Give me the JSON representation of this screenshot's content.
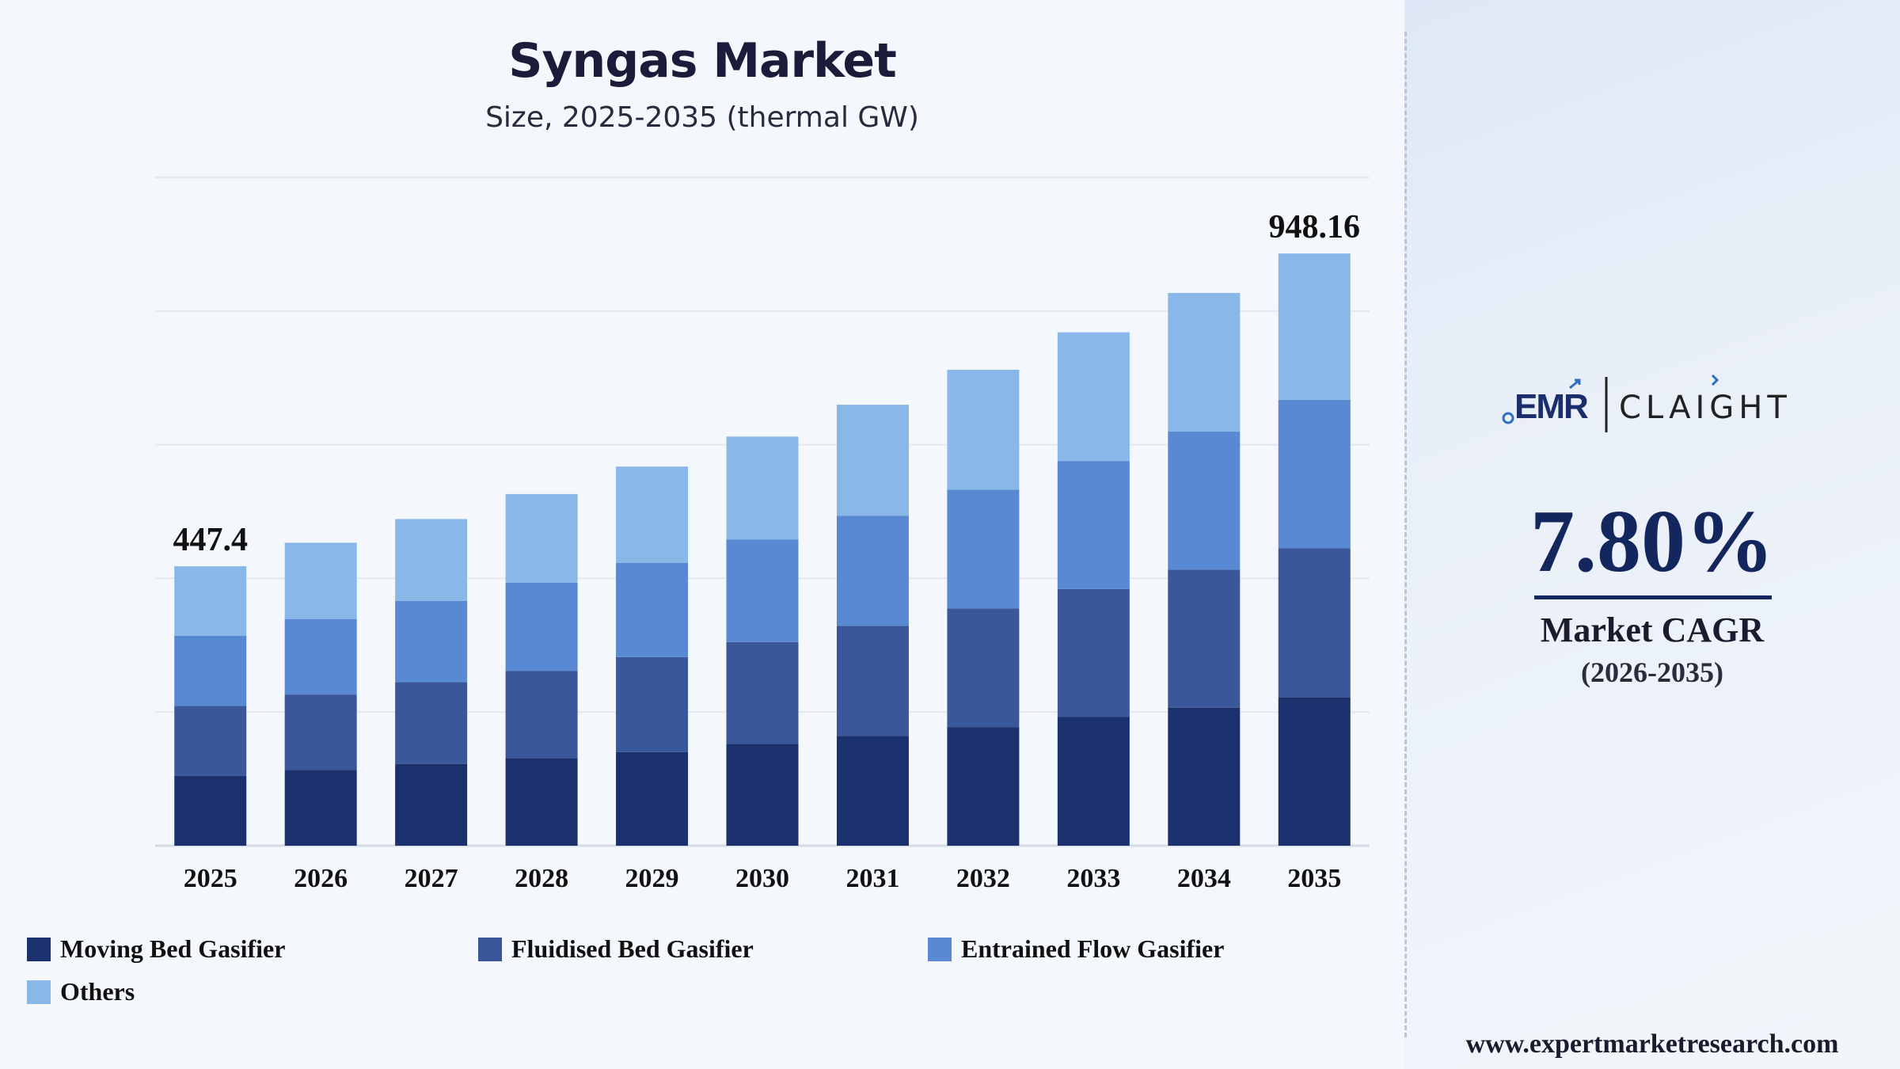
{
  "chart_data": {
    "type": "bar",
    "stacked": true,
    "title": "Syngas Market",
    "subtitle": "Size, 2025-2035 (thermal GW)",
    "xlabel": "",
    "ylabel": "",
    "categories": [
      "2025",
      "2026",
      "2027",
      "2028",
      "2029",
      "2030",
      "2031",
      "2032",
      "2033",
      "2034",
      "2035"
    ],
    "series": [
      {
        "name": "Moving Bed Gasifier",
        "color": "#1b316d",
        "values": [
          112,
          121,
          131,
          140,
          150,
          163,
          176,
          190,
          206,
          221,
          238
        ]
      },
      {
        "name": "Fluidised Bed Gasifier",
        "color": "#3a5799",
        "values": [
          112,
          121,
          131,
          140,
          152,
          163,
          176,
          190,
          205,
          221,
          238
        ]
      },
      {
        "name": "Entrained Flow Gasifier",
        "color": "#5889d2",
        "values": [
          112,
          121,
          130,
          141,
          151,
          164,
          176,
          190,
          205,
          221,
          238
        ]
      },
      {
        "name": "Others",
        "color": "#89b7e8",
        "values": [
          111.4,
          122,
          131,
          142,
          154,
          165,
          178,
          192,
          206,
          222,
          234.16
        ]
      }
    ],
    "totals_labels": {
      "first": "447.4",
      "last": "948.16"
    },
    "ylim": [
      0,
      1070
    ],
    "grid": true,
    "legend": "bottom"
  },
  "brand": {
    "logo_left": "EMR",
    "logo_right": "CLAIGHT"
  },
  "cagr": {
    "value": "7.80%",
    "label": "Market CAGR",
    "period": "(2026-2035)"
  },
  "footer": {
    "website": "www.expertmarketresearch.com"
  },
  "colors": {
    "accent": "#14265e"
  }
}
